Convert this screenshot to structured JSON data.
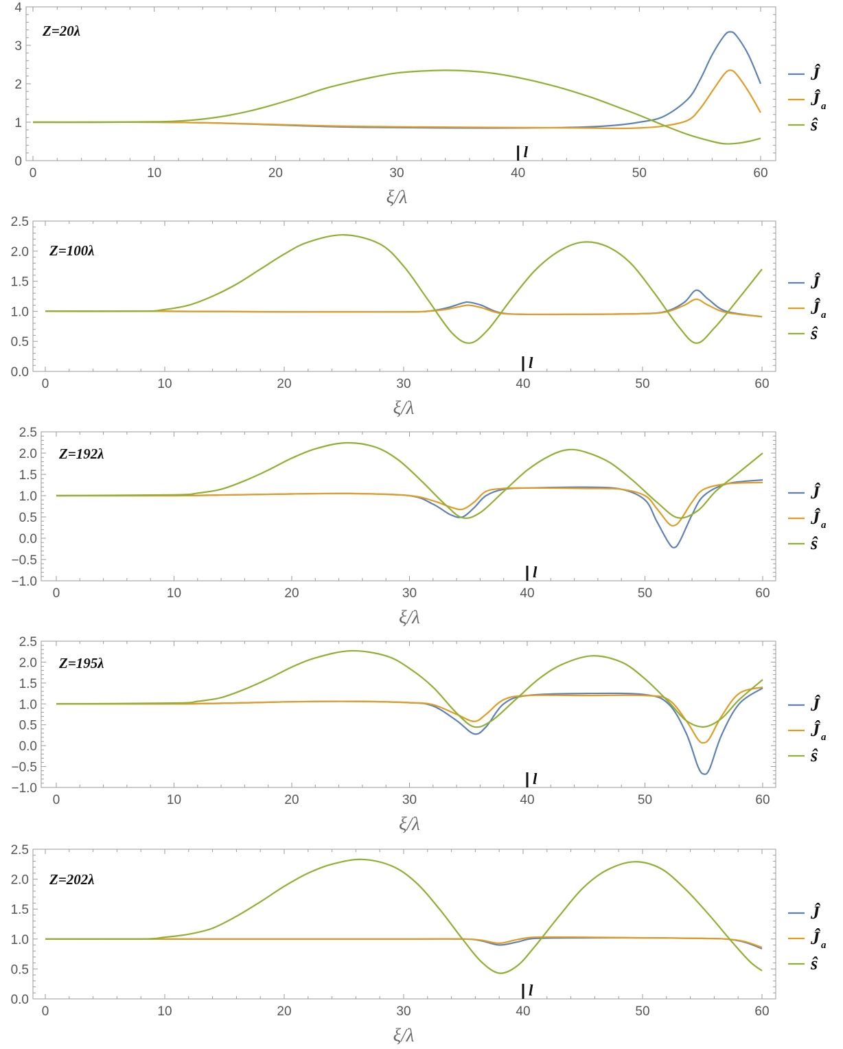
{
  "figure": {
    "legend": [
      {
        "label": "Ĵ",
        "sub": "",
        "color": "#5e81b5"
      },
      {
        "label": "Ĵ",
        "sub": "a",
        "color": "#e19c24"
      },
      {
        "label": "ŝ",
        "sub": "",
        "color": "#8fb032"
      }
    ],
    "marker_label": "l",
    "x_axis_label": "ξ/λ"
  },
  "chart_data": [
    {
      "type": "line",
      "title": "Z=20λ",
      "xlabel": "ξ/λ",
      "xlim": [
        0,
        60
      ],
      "ylim": [
        0,
        4
      ],
      "xticks": [
        0,
        10,
        20,
        30,
        40,
        50,
        60
      ],
      "yticks": [
        0,
        1,
        2,
        3,
        4
      ],
      "ytick_labels": [
        "0",
        "1",
        "2",
        "3",
        "4"
      ],
      "marker_x": 40,
      "series": [
        {
          "name": "Ĵ",
          "color": "#5e81b5",
          "x": [
            0,
            5,
            10,
            15,
            20,
            25,
            30,
            35,
            40,
            45,
            48,
            50,
            52,
            54,
            55,
            56,
            57,
            57.5,
            58,
            59,
            60
          ],
          "y": [
            1,
            1,
            1,
            0.98,
            0.93,
            0.88,
            0.86,
            0.85,
            0.85,
            0.87,
            0.92,
            1.0,
            1.15,
            1.6,
            2.1,
            2.75,
            3.25,
            3.35,
            3.25,
            2.75,
            2.0
          ]
        },
        {
          "name": "Ĵa",
          "color": "#e19c24",
          "x": [
            0,
            5,
            10,
            15,
            20,
            25,
            30,
            35,
            40,
            45,
            48,
            50,
            52,
            54,
            55,
            56,
            57,
            57.5,
            58,
            59,
            60
          ],
          "y": [
            1,
            1,
            1,
            0.98,
            0.94,
            0.9,
            0.88,
            0.87,
            0.86,
            0.85,
            0.84,
            0.85,
            0.9,
            1.05,
            1.35,
            1.8,
            2.25,
            2.35,
            2.25,
            1.8,
            1.25
          ]
        },
        {
          "name": "ŝ",
          "color": "#8fb032",
          "x": [
            0,
            5,
            10,
            12,
            14,
            16,
            18,
            20,
            22,
            24,
            26,
            28,
            30,
            32,
            34,
            36,
            38,
            40,
            42,
            44,
            46,
            48,
            50,
            52,
            54,
            56,
            57,
            58,
            59,
            60
          ],
          "y": [
            1,
            1,
            1.01,
            1.03,
            1.08,
            1.17,
            1.3,
            1.47,
            1.66,
            1.87,
            2.03,
            2.17,
            2.28,
            2.33,
            2.35,
            2.33,
            2.27,
            2.16,
            2.02,
            1.85,
            1.65,
            1.42,
            1.18,
            0.92,
            0.68,
            0.5,
            0.44,
            0.45,
            0.5,
            0.58
          ]
        }
      ]
    },
    {
      "type": "line",
      "title": "Z=100λ",
      "xlabel": "ξ/λ",
      "xlim": [
        0,
        60
      ],
      "ylim": [
        0,
        2.5
      ],
      "xticks": [
        0,
        10,
        20,
        30,
        40,
        50,
        60
      ],
      "yticks": [
        0,
        0.5,
        1,
        1.5,
        2,
        2.5
      ],
      "ytick_labels": [
        "0.0",
        "0.5",
        "1.0",
        "1.5",
        "2.0",
        "2.5"
      ],
      "marker_x": 40,
      "series": [
        {
          "name": "Ĵ",
          "color": "#5e81b5",
          "x": [
            0,
            10,
            20,
            30,
            32,
            33.5,
            35,
            35.5,
            36.5,
            38,
            40,
            45,
            50,
            52,
            53.5,
            54.5,
            55.5,
            57,
            60
          ],
          "y": [
            1,
            1,
            0.99,
            0.99,
            1.0,
            1.05,
            1.14,
            1.15,
            1.1,
            0.98,
            0.95,
            0.95,
            0.96,
            1.0,
            1.15,
            1.35,
            1.2,
            1.0,
            0.91
          ]
        },
        {
          "name": "Ĵa",
          "color": "#e19c24",
          "x": [
            0,
            10,
            20,
            30,
            32,
            33.5,
            35,
            35.5,
            36.5,
            38,
            40,
            45,
            50,
            52,
            53.5,
            54.5,
            55.5,
            57,
            60
          ],
          "y": [
            1,
            1,
            0.99,
            0.99,
            1.0,
            1.03,
            1.09,
            1.1,
            1.06,
            0.97,
            0.95,
            0.95,
            0.96,
            0.99,
            1.1,
            1.2,
            1.1,
            0.98,
            0.91
          ]
        },
        {
          "name": "ŝ",
          "color": "#8fb032",
          "x": [
            0,
            8,
            10,
            12,
            14,
            16,
            18,
            20,
            22,
            25,
            28,
            30,
            32,
            34,
            35.5,
            37,
            39,
            41,
            43,
            45,
            47,
            49,
            51,
            53,
            54.5,
            56,
            58,
            60
          ],
          "y": [
            1,
            1,
            1.03,
            1.1,
            1.25,
            1.45,
            1.7,
            1.95,
            2.15,
            2.27,
            2.12,
            1.75,
            1.2,
            0.65,
            0.47,
            0.68,
            1.2,
            1.68,
            2.0,
            2.15,
            2.08,
            1.8,
            1.3,
            0.75,
            0.47,
            0.72,
            1.2,
            1.7
          ]
        }
      ]
    },
    {
      "type": "line",
      "title": "Z=192λ",
      "xlabel": "ξ/λ",
      "xlim": [
        0,
        60
      ],
      "ylim": [
        -1,
        2.5
      ],
      "xticks": [
        0,
        10,
        20,
        30,
        40,
        50,
        60
      ],
      "yticks": [
        -1,
        -0.5,
        0,
        0.5,
        1,
        1.5,
        2,
        2.5
      ],
      "ytick_labels": [
        "-1.0",
        "-0.5",
        "0.0",
        "0.5",
        "1.0",
        "1.5",
        "2.0",
        "2.5"
      ],
      "marker_x": 40,
      "series": [
        {
          "name": "Ĵ",
          "color": "#5e81b5",
          "x": [
            0,
            10,
            15,
            20,
            25,
            30,
            32,
            33.5,
            34.5,
            35.5,
            36.5,
            38,
            40,
            45,
            48,
            50,
            51,
            52,
            52.5,
            53,
            54,
            55,
            57,
            60
          ],
          "y": [
            1,
            1,
            1.02,
            1.04,
            1.05,
            1.0,
            0.8,
            0.55,
            0.5,
            0.72,
            1.0,
            1.15,
            1.18,
            1.2,
            1.15,
            0.9,
            0.4,
            -0.1,
            -0.22,
            -0.05,
            0.55,
            1.0,
            1.28,
            1.37
          ]
        },
        {
          "name": "Ĵa",
          "color": "#e19c24",
          "x": [
            0,
            10,
            15,
            20,
            25,
            30,
            32,
            33.5,
            34.5,
            35.5,
            36.5,
            38,
            40,
            45,
            48,
            50,
            51,
            52,
            52.5,
            53,
            54,
            55,
            57,
            60
          ],
          "y": [
            1,
            1,
            1.02,
            1.04,
            1.05,
            1.0,
            0.88,
            0.73,
            0.68,
            0.85,
            1.1,
            1.17,
            1.18,
            1.17,
            1.15,
            1.0,
            0.7,
            0.35,
            0.3,
            0.42,
            0.85,
            1.15,
            1.28,
            1.31
          ]
        },
        {
          "name": "ŝ",
          "color": "#8fb032",
          "x": [
            0,
            10,
            12,
            14,
            16,
            18,
            20,
            22,
            24.5,
            27,
            29,
            31,
            33,
            34.5,
            36,
            38,
            40,
            42,
            43.5,
            45,
            47,
            49,
            51,
            52.8,
            54.5,
            56,
            58,
            60
          ],
          "y": [
            1,
            1.02,
            1.06,
            1.15,
            1.35,
            1.6,
            1.88,
            2.1,
            2.24,
            2.15,
            1.85,
            1.35,
            0.8,
            0.48,
            0.6,
            1.1,
            1.6,
            1.95,
            2.08,
            2.02,
            1.78,
            1.35,
            0.85,
            0.48,
            0.65,
            1.1,
            1.55,
            2.0
          ]
        }
      ]
    },
    {
      "type": "line",
      "title": "Z=195λ",
      "xlabel": "ξ/λ",
      "xlim": [
        0,
        60
      ],
      "ylim": [
        -1,
        2.5
      ],
      "xticks": [
        0,
        10,
        20,
        30,
        40,
        50,
        60
      ],
      "yticks": [
        -1,
        -0.5,
        0,
        0.5,
        1,
        1.5,
        2,
        2.5
      ],
      "ytick_labels": [
        "-1.0",
        "-0.5",
        "0.0",
        "0.5",
        "1.0",
        "1.5",
        "2.0",
        "2.5"
      ],
      "marker_x": 40,
      "series": [
        {
          "name": "Ĵ",
          "color": "#5e81b5",
          "x": [
            0,
            10,
            15,
            20,
            25,
            30,
            32,
            34,
            35.5,
            36.5,
            38,
            40,
            45,
            50,
            52,
            53.5,
            54.5,
            55,
            55.5,
            56.5,
            58,
            60
          ],
          "y": [
            1,
            1,
            1.02,
            1.05,
            1.06,
            1.03,
            0.95,
            0.6,
            0.28,
            0.45,
            1.0,
            1.2,
            1.25,
            1.22,
            1.0,
            0.3,
            -0.5,
            -0.68,
            -0.55,
            0.25,
            1.0,
            1.38
          ]
        },
        {
          "name": "Ĵa",
          "color": "#e19c24",
          "x": [
            0,
            10,
            15,
            20,
            25,
            30,
            32,
            34,
            35.5,
            36.5,
            38,
            40,
            45,
            50,
            52,
            53.5,
            54.5,
            55,
            55.5,
            56.5,
            58,
            60
          ],
          "y": [
            1,
            1,
            1.02,
            1.05,
            1.06,
            1.03,
            0.98,
            0.75,
            0.58,
            0.75,
            1.1,
            1.2,
            1.2,
            1.2,
            1.1,
            0.6,
            0.15,
            0.07,
            0.18,
            0.7,
            1.25,
            1.4
          ]
        },
        {
          "name": "ŝ",
          "color": "#8fb032",
          "x": [
            0,
            10,
            12,
            14,
            16,
            18,
            20,
            22,
            25,
            28,
            30,
            32,
            34,
            35.5,
            37,
            39,
            41,
            43,
            45.5,
            48,
            50,
            52,
            53.5,
            55,
            56.5,
            58,
            60
          ],
          "y": [
            1,
            1.02,
            1.06,
            1.15,
            1.35,
            1.6,
            1.88,
            2.1,
            2.27,
            2.15,
            1.85,
            1.4,
            0.78,
            0.45,
            0.6,
            1.1,
            1.6,
            1.95,
            2.15,
            2.0,
            1.6,
            1.05,
            0.6,
            0.45,
            0.65,
            1.1,
            1.58
          ]
        }
      ]
    },
    {
      "type": "line",
      "title": "Z=202λ",
      "xlabel": "ξ/λ",
      "xlim": [
        0,
        60
      ],
      "ylim": [
        0,
        2.5
      ],
      "xticks": [
        0,
        10,
        20,
        30,
        40,
        50,
        60
      ],
      "yticks": [
        0,
        0.5,
        1,
        1.5,
        2,
        2.5
      ],
      "ytick_labels": [
        "0.0",
        "0.5",
        "1.0",
        "1.5",
        "2.0",
        "2.5"
      ],
      "marker_x": 40,
      "series": [
        {
          "name": "Ĵ",
          "color": "#5e81b5",
          "x": [
            0,
            10,
            20,
            30,
            35,
            36.5,
            38,
            39.5,
            41,
            45,
            50,
            55,
            57,
            58.5,
            60
          ],
          "y": [
            1,
            1,
            1,
            1,
            1,
            0.97,
            0.9,
            0.95,
            1.01,
            1.02,
            1.02,
            1.01,
            1.0,
            0.95,
            0.84
          ]
        },
        {
          "name": "Ĵa",
          "color": "#e19c24",
          "x": [
            0,
            10,
            20,
            30,
            35,
            36.5,
            38,
            39.5,
            41,
            45,
            50,
            55,
            57,
            58.5,
            60
          ],
          "y": [
            1,
            1,
            1,
            1,
            1,
            0.98,
            0.93,
            0.99,
            1.03,
            1.03,
            1.02,
            1.01,
            1.0,
            0.96,
            0.86
          ]
        },
        {
          "name": "ŝ",
          "color": "#8fb032",
          "x": [
            0,
            8,
            10,
            12,
            14,
            16,
            18,
            20,
            22,
            24,
            26.5,
            29,
            31,
            33,
            35,
            36.5,
            38,
            39.5,
            41,
            43,
            45,
            47,
            49.3,
            51.5,
            53.5,
            55.5,
            57.5,
            59,
            60
          ],
          "y": [
            1,
            1,
            1.03,
            1.08,
            1.18,
            1.38,
            1.62,
            1.88,
            2.1,
            2.25,
            2.33,
            2.22,
            1.95,
            1.5,
            0.98,
            0.62,
            0.43,
            0.55,
            0.88,
            1.38,
            1.85,
            2.15,
            2.29,
            2.18,
            1.85,
            1.42,
            0.95,
            0.62,
            0.47
          ]
        }
      ]
    }
  ]
}
